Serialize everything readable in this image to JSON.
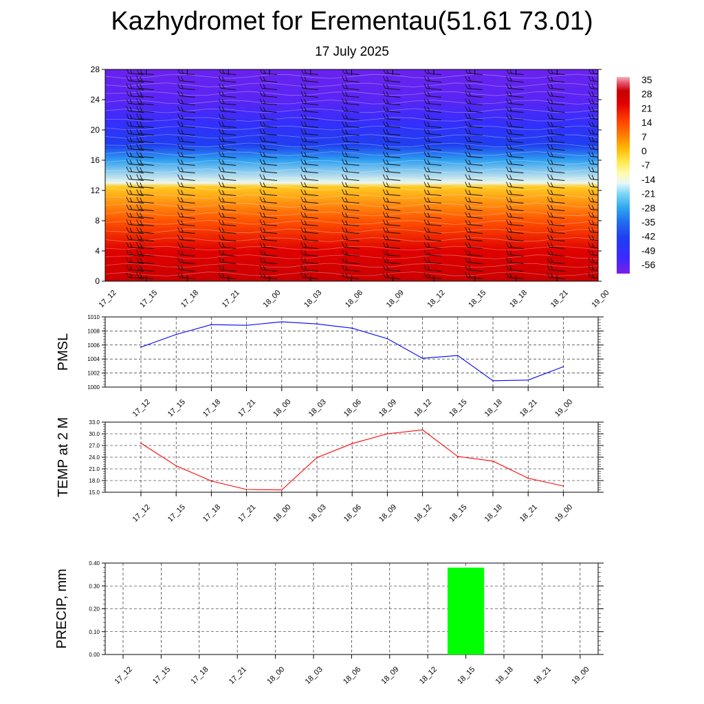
{
  "title": "Kazhydromet for Erementau(51.61 73.01)",
  "subtitle": "17 July 2025",
  "colors": {
    "pmsl_line": "#0000ff",
    "temp_line": "#ff0000",
    "precip_bar": "#00ff00",
    "grid": "#000000"
  },
  "chart_data": [
    {
      "type": "heatmap",
      "title": "",
      "xlabel": "",
      "ylabel": "",
      "x": [
        "17_12",
        "17_15",
        "17_18",
        "17_21",
        "18_00",
        "18_03",
        "18_06",
        "18_09",
        "18_12",
        "18_15",
        "18_18",
        "18_21",
        "19_00"
      ],
      "y_ticks": [
        "0",
        "4",
        "8",
        "12",
        "16",
        "20",
        "24",
        "28"
      ],
      "ylim": [
        0,
        28
      ],
      "colorbar_labels": [
        "35",
        "28",
        "21",
        "14",
        "7",
        "0",
        "-7",
        "-14",
        "-21",
        "-28",
        "-35",
        "-42",
        "-49",
        "-56"
      ],
      "colorbar_range": [
        -60,
        38
      ],
      "temperature_profile": [
        {
          "level": 0,
          "value": 30
        },
        {
          "level": 4,
          "value": 25
        },
        {
          "level": 8,
          "value": 14
        },
        {
          "level": 12.5,
          "value": 0
        },
        {
          "level": 13,
          "value": -14
        },
        {
          "level": 16,
          "value": -28
        },
        {
          "level": 18,
          "value": -42
        },
        {
          "level": 21,
          "value": -50
        },
        {
          "level": 24,
          "value": -56
        },
        {
          "level": 28,
          "value": -58
        }
      ],
      "overlay": "wind barbs"
    },
    {
      "type": "line",
      "ylabel": "PMSL",
      "xlabel": "",
      "categories": [
        "17_12",
        "17_15",
        "17_18",
        "17_21",
        "18_00",
        "18_03",
        "18_06",
        "18_09",
        "18_12",
        "18_15",
        "18_18",
        "18_21",
        "19_00"
      ],
      "values": [
        1005.7,
        1007.5,
        1008.9,
        1008.8,
        1009.3,
        1009.0,
        1008.4,
        1006.9,
        1004.1,
        1004.5,
        1000.9,
        1001.0,
        1002.9
      ],
      "ylim": [
        1000,
        1010
      ],
      "yticks": [
        "1000",
        "1002",
        "1004",
        "1006",
        "1008",
        "1010"
      ],
      "grid": true
    },
    {
      "type": "line",
      "ylabel": "TEMP at 2 M",
      "xlabel": "",
      "categories": [
        "17_12",
        "17_15",
        "17_18",
        "17_21",
        "18_00",
        "18_03",
        "18_06",
        "18_09",
        "18_12",
        "18_15",
        "18_18",
        "18_21",
        "19_00"
      ],
      "values": [
        27.6,
        21.8,
        17.9,
        15.7,
        15.6,
        23.9,
        27.5,
        30.0,
        31.0,
        24.2,
        23.0,
        18.6,
        16.6
      ],
      "ylim": [
        15,
        33
      ],
      "yticks": [
        "15.0",
        "18.0",
        "21.0",
        "24.0",
        "27.0",
        "30.0",
        "33.0"
      ],
      "grid": true
    },
    {
      "type": "bar",
      "ylabel": "PRECIP, mm",
      "xlabel": "",
      "categories": [
        "17_12",
        "17_15",
        "17_18",
        "17_21",
        "18_00",
        "18_03",
        "18_06",
        "18_09",
        "18_12",
        "18_15",
        "18_18",
        "18_21",
        "19_00"
      ],
      "values": [
        0,
        0,
        0,
        0,
        0,
        0,
        0,
        0,
        0,
        0.38,
        0,
        0,
        0
      ],
      "ylim": [
        0,
        0.4
      ],
      "yticks": [
        "0.00",
        "0.10",
        "0.20",
        "0.30",
        "0.40"
      ],
      "grid": true
    }
  ]
}
